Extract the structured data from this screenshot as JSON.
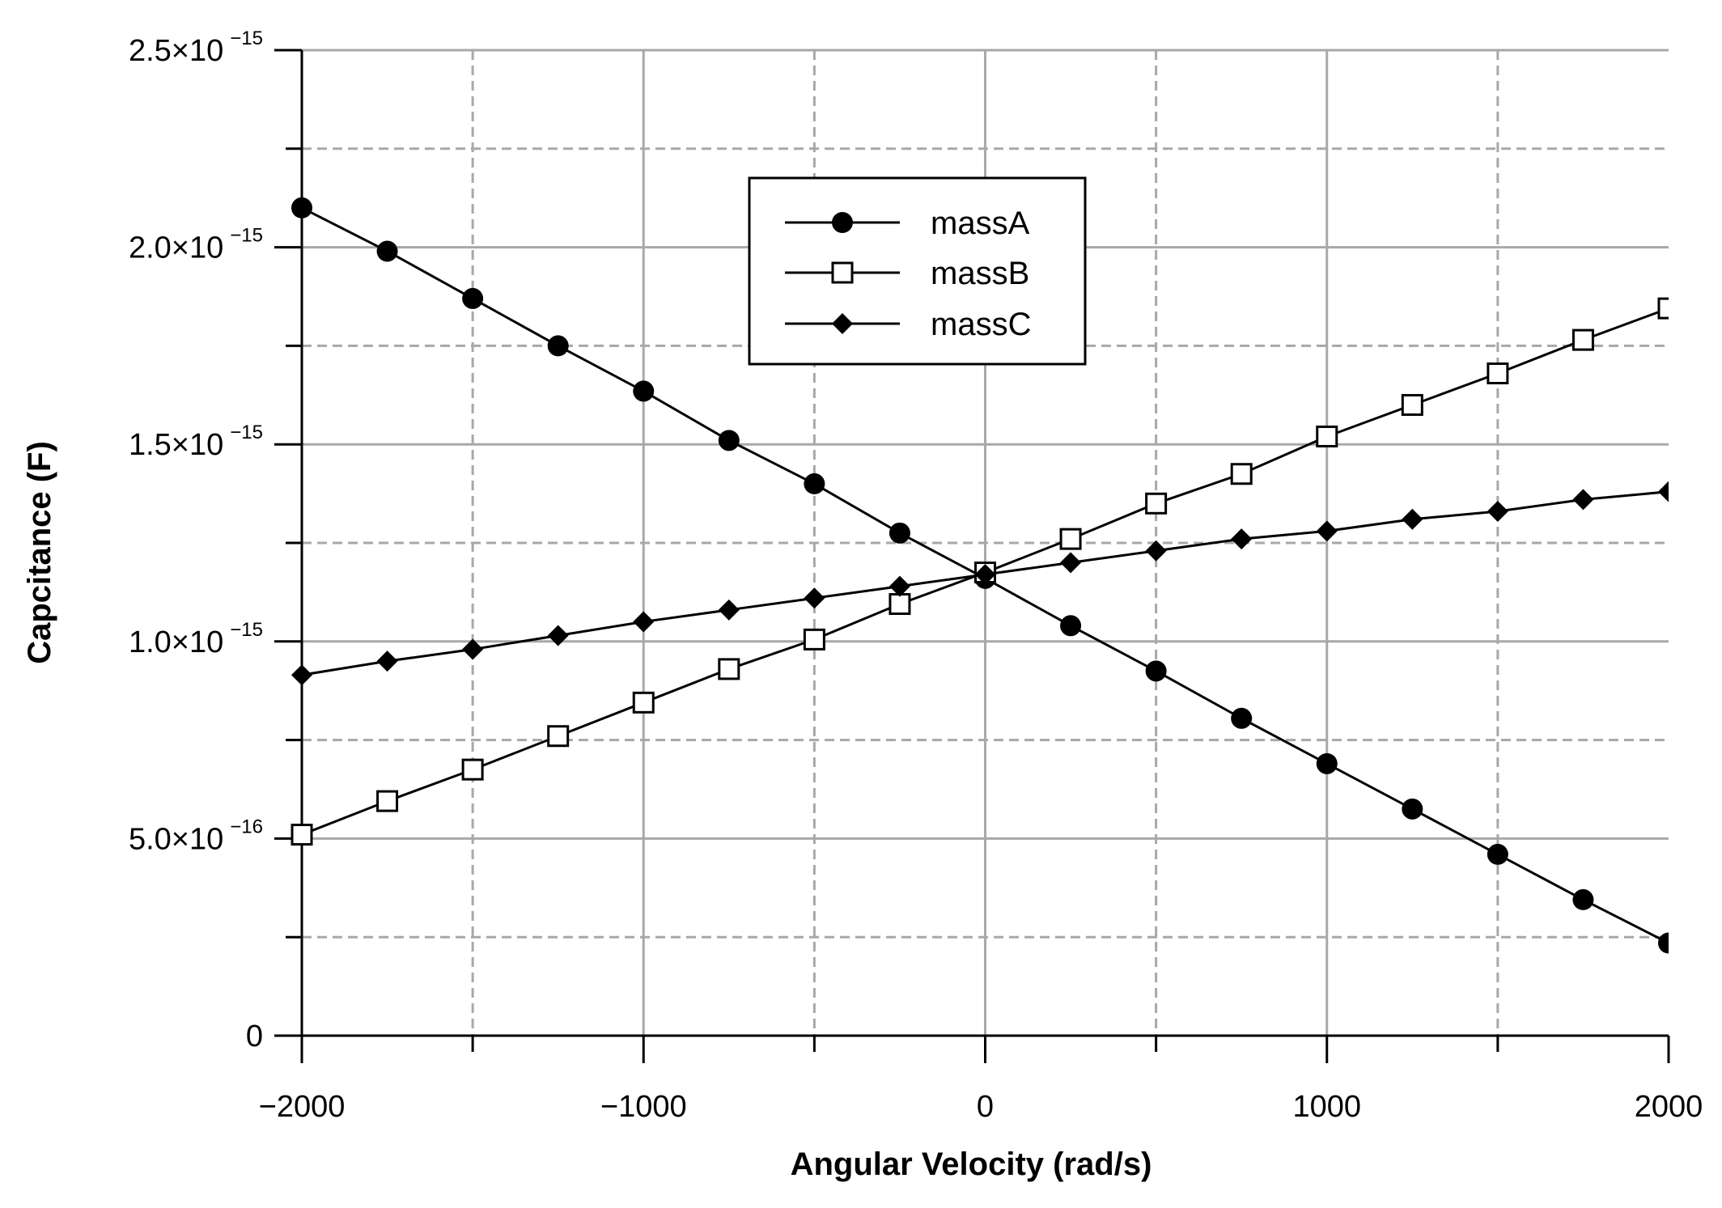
{
  "chart_data": {
    "type": "line",
    "xlabel": "Angular Velocity (rad/s)",
    "ylabel": "Capcitance (F)",
    "xlim": [
      -2000,
      2000
    ],
    "ylim": [
      0,
      2.5e-15
    ],
    "x_ticks": [
      {
        "value": -2000,
        "label": "−2000"
      },
      {
        "value": -1000,
        "label": "−1000"
      },
      {
        "value": 0,
        "label": "0"
      },
      {
        "value": 1000,
        "label": "1000"
      },
      {
        "value": 2000,
        "label": "2000"
      }
    ],
    "y_ticks": [
      {
        "value": 0,
        "mantissa": "0",
        "exponent": ""
      },
      {
        "value": 5e-16,
        "mantissa": "5.0×10",
        "exponent": "−16"
      },
      {
        "value": 1e-15,
        "mantissa": "1.0×10",
        "exponent": "−15"
      },
      {
        "value": 1.5e-15,
        "mantissa": "1.5×10",
        "exponent": "−15"
      },
      {
        "value": 2e-15,
        "mantissa": "2.0×10",
        "exponent": "−15"
      },
      {
        "value": 2.5e-15,
        "mantissa": "2.5×10",
        "exponent": "−15"
      }
    ],
    "grid": true,
    "legend_position": "top-center",
    "x": [
      -2000,
      -1750,
      -1500,
      -1250,
      -1000,
      -750,
      -500,
      -250,
      0,
      250,
      500,
      750,
      1000,
      1250,
      1500,
      1750,
      2000
    ],
    "series": [
      {
        "name": "massA",
        "marker": "circle-filled",
        "values": [
          2.1e-15,
          1.99e-15,
          1.87e-15,
          1.75e-15,
          1.635e-15,
          1.51e-15,
          1.4e-15,
          1.275e-15,
          1.16e-15,
          1.04e-15,
          9.25e-16,
          8.05e-16,
          6.9e-16,
          5.75e-16,
          4.6e-16,
          3.45e-16,
          2.35e-16
        ]
      },
      {
        "name": "massB",
        "marker": "square-open",
        "values": [
          5.1e-16,
          5.95e-16,
          6.75e-16,
          7.6e-16,
          8.45e-16,
          9.3e-16,
          1.005e-15,
          1.095e-15,
          1.175e-15,
          1.26e-15,
          1.35e-15,
          1.425e-15,
          1.52e-15,
          1.6e-15,
          1.68e-15,
          1.765e-15,
          1.845e-15
        ]
      },
      {
        "name": "massC",
        "marker": "diamond-filled",
        "values": [
          9.15e-16,
          9.5e-16,
          9.8e-16,
          1.015e-15,
          1.05e-15,
          1.08e-15,
          1.11e-15,
          1.14e-15,
          1.17e-15,
          1.2e-15,
          1.23e-15,
          1.26e-15,
          1.28e-15,
          1.31e-15,
          1.33e-15,
          1.36e-15,
          1.38e-15
        ]
      }
    ]
  }
}
